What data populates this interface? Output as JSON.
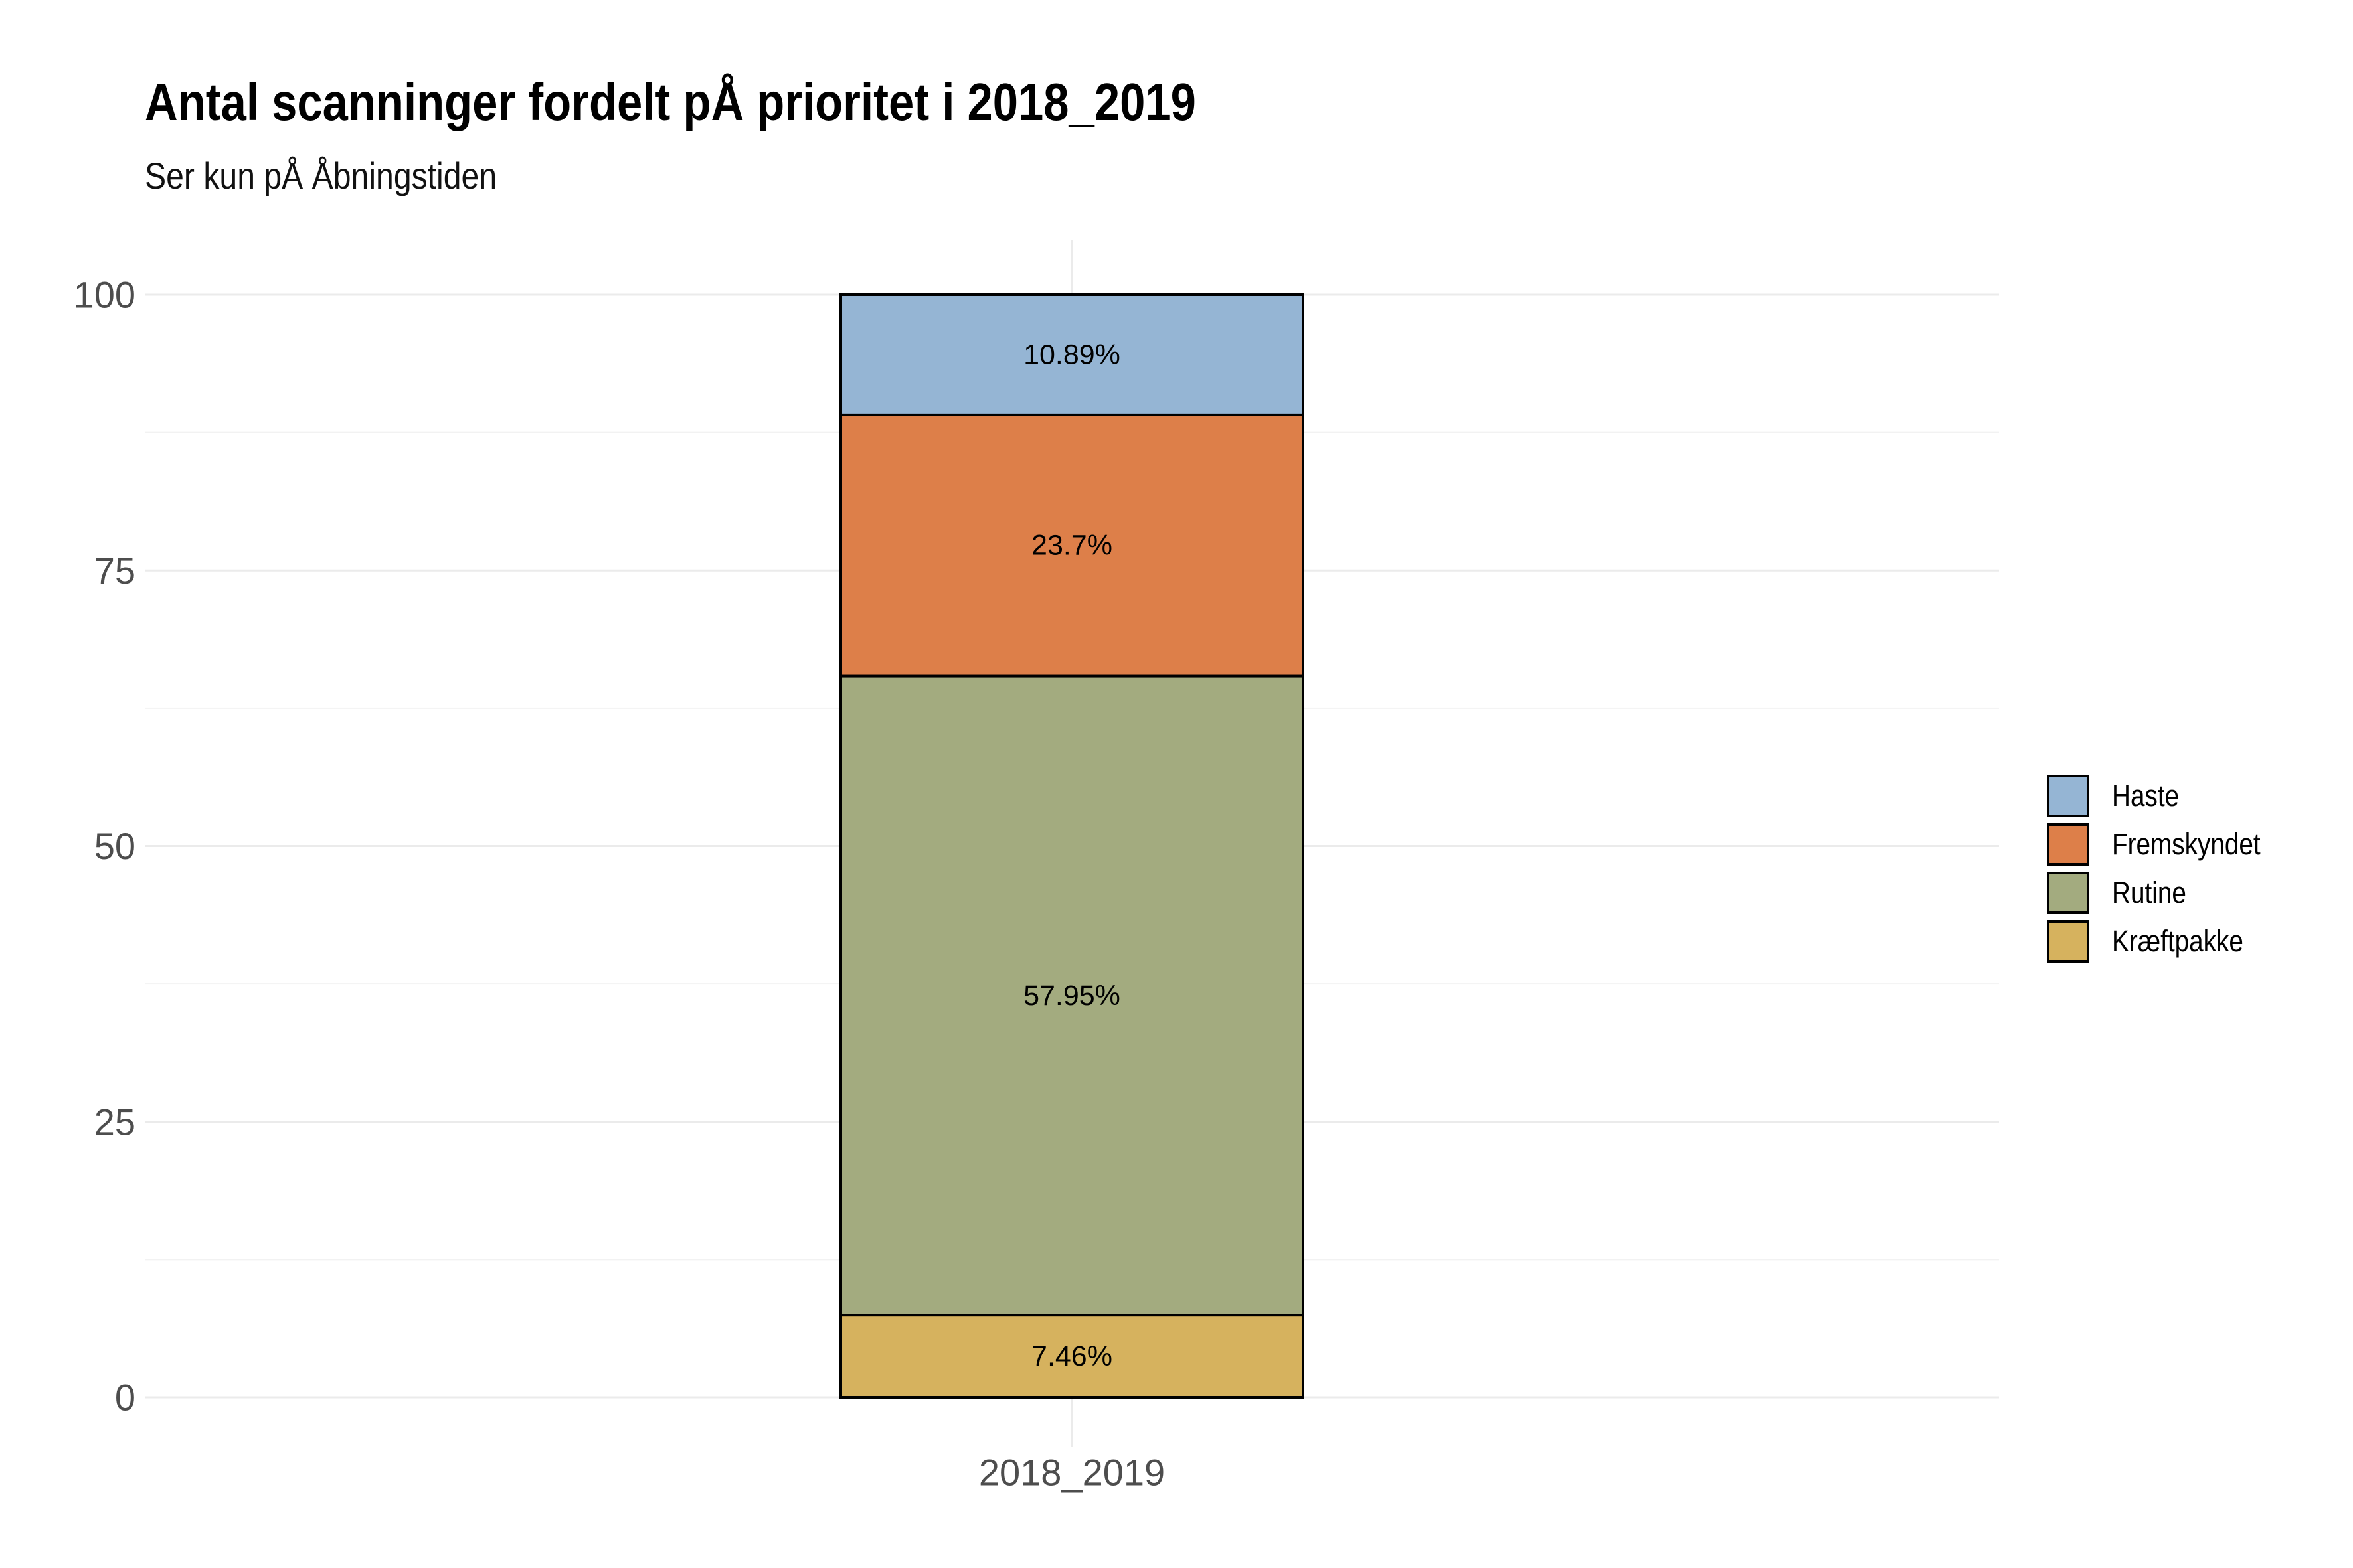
{
  "title": "Antal scanninger fordelt pÅ prioritet i 2018_2019",
  "subtitle": "Ser kun pÅ Åbningstiden",
  "chart_data": {
    "type": "bar",
    "stacked": true,
    "categories": [
      "2018_2019"
    ],
    "series": [
      {
        "name": "Kræftpakke",
        "values": [
          7.46
        ],
        "label": "7.46%",
        "color": "#d6b25e"
      },
      {
        "name": "Rutine",
        "values": [
          57.95
        ],
        "label": "57.95%",
        "color": "#a3ab7f"
      },
      {
        "name": "Fremskyndet",
        "values": [
          23.7
        ],
        "label": "23.7%",
        "color": "#dd7f49"
      },
      {
        "name": "Haste",
        "values": [
          10.89
        ],
        "label": "10.89%",
        "color": "#95b5d4"
      }
    ],
    "yticks": [
      0,
      25,
      50,
      75,
      100
    ],
    "ylim": [
      0,
      100
    ],
    "xlabel": "",
    "ylabel": "",
    "grid": true,
    "legend_position": "right",
    "legend_order": [
      "Haste",
      "Fremskyndet",
      "Rutine",
      "Kræftpakke"
    ]
  }
}
